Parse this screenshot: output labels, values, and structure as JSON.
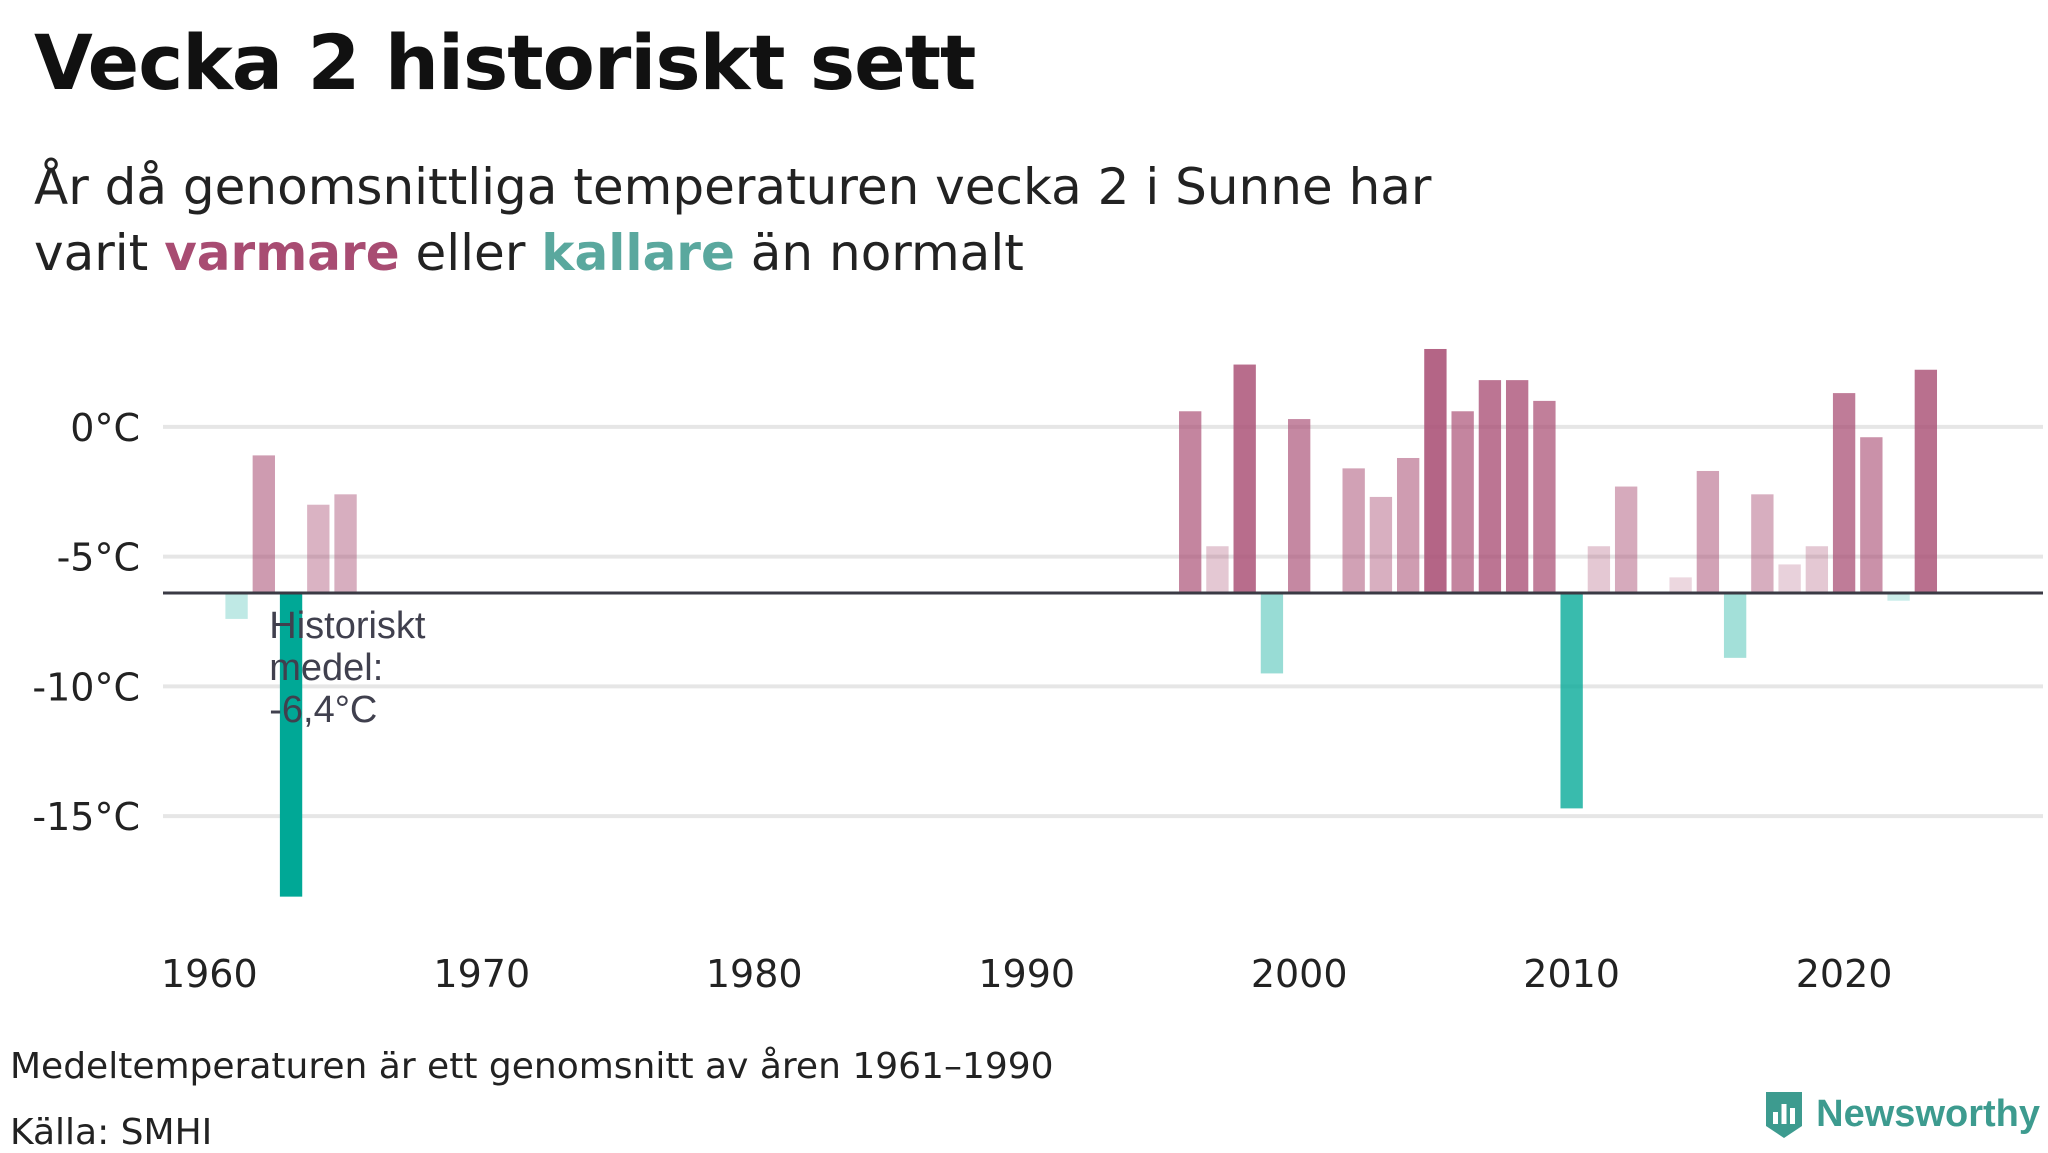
{
  "header": {
    "title": "Vecka 2 historiskt sett",
    "subtitle_line1": "År då genomsnittliga temperaturen vecka 2 i Sunne har",
    "subtitle_prefix": "varit",
    "subtitle_warm": "varmare",
    "subtitle_mid": "eller",
    "subtitle_cold": "kallare",
    "subtitle_suffix": "än normalt"
  },
  "footer": {
    "note": "Medeltemperaturen är ett genomsnitt av åren 1961–1990",
    "source": "Källa: SMHI",
    "brand": "Newsworthy",
    "brand_icon": "newsworthy-logo-icon"
  },
  "colors": {
    "warm": "#a84c72",
    "cold": "#00a896",
    "grid": "#e6e6e6",
    "baseline": "#3a3a44"
  },
  "chart_data": {
    "type": "bar",
    "baseline": -6.4,
    "ylim": [
      -19,
      3.5
    ],
    "xlim": [
      1958.3,
      2027.3
    ],
    "y_ticks": [
      0,
      -5,
      -10,
      -15
    ],
    "y_tick_labels": [
      "0°C",
      "-5°C",
      "-10°C",
      "-15°C"
    ],
    "x_ticks": [
      1960,
      1970,
      1980,
      1990,
      2000,
      2010,
      2020
    ],
    "x_tick_labels": [
      "1960",
      "1970",
      "1980",
      "1990",
      "2000",
      "2010",
      "2020"
    ],
    "grid": true,
    "annotation": [
      "Historiskt",
      "medel:",
      "-6,4°C"
    ],
    "years": [
      1961,
      1962,
      1963,
      1964,
      1965,
      1996,
      1997,
      1998,
      1999,
      2000,
      2002,
      2003,
      2004,
      2005,
      2006,
      2007,
      2008,
      2009,
      2010,
      2011,
      2012,
      2014,
      2015,
      2016,
      2017,
      2018,
      2019,
      2020,
      2021,
      2022,
      2023
    ],
    "values": [
      -7.4,
      -1.1,
      -18.1,
      -3.0,
      -2.6,
      0.6,
      -4.6,
      2.4,
      -9.5,
      0.3,
      -1.6,
      -2.7,
      -1.2,
      3.0,
      0.6,
      1.8,
      1.8,
      1.0,
      -14.7,
      -4.6,
      -2.3,
      -5.8,
      -1.7,
      -8.9,
      -2.6,
      -5.3,
      -4.6,
      1.3,
      -0.4,
      -6.7,
      2.2
    ]
  }
}
